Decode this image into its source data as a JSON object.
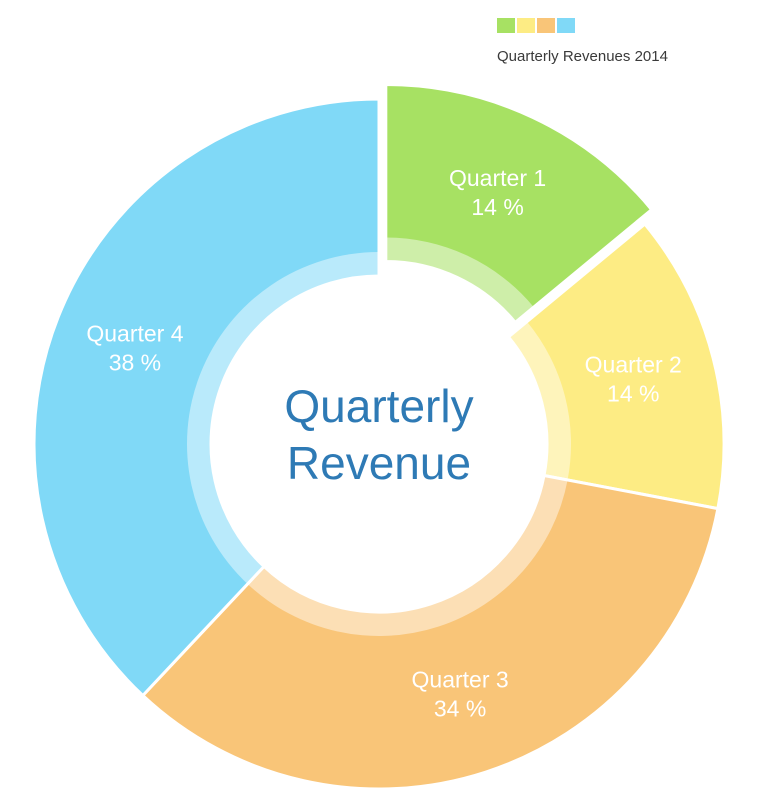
{
  "chart_data": {
    "type": "pie",
    "subtype": "donut",
    "title": "Quarterly Revenue",
    "center_label_lines": [
      "Quarterly",
      "Revenue"
    ],
    "legend_title": "Quarterly Revenues 2014",
    "legend_position": "top-right",
    "categories": [
      "Quarter 1",
      "Quarter 2",
      "Quarter 3",
      "Quarter 4"
    ],
    "values": [
      14,
      14,
      34,
      38
    ],
    "value_suffix": " %",
    "colors": [
      "#a7e163",
      "#fdec84",
      "#f9c578",
      "#80d9f7"
    ],
    "center_text_color": "#2e7ab5",
    "slice_label_color": "#ffffff",
    "start_angle_deg": 0,
    "exploded_index": 0,
    "slice_labels": [
      {
        "name": "Quarter 1",
        "percent": "14 %"
      },
      {
        "name": "Quarter 2",
        "percent": "14 %"
      },
      {
        "name": "Quarter 3",
        "percent": "34 %"
      },
      {
        "name": "Quarter 4",
        "percent": "38 %"
      }
    ]
  }
}
